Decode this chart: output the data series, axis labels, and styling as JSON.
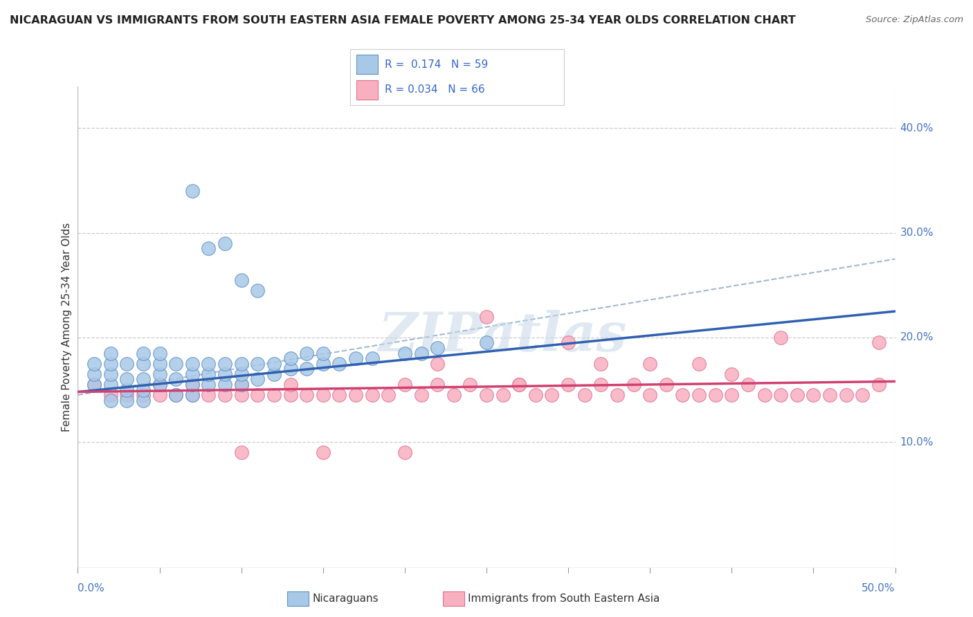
{
  "title": "NICARAGUAN VS IMMIGRANTS FROM SOUTH EASTERN ASIA FEMALE POVERTY AMONG 25-34 YEAR OLDS CORRELATION CHART",
  "source": "Source: ZipAtlas.com",
  "ylabel": "Female Poverty Among 25-34 Year Olds",
  "ytick_vals": [
    0.1,
    0.2,
    0.3,
    0.4
  ],
  "ytick_labels": [
    "10.0%",
    "20.0%",
    "30.0%",
    "40.0%"
  ],
  "xlim": [
    0.0,
    0.5
  ],
  "ylim": [
    -0.02,
    0.44
  ],
  "blue_color": "#a8c8e8",
  "blue_edge_color": "#6090c0",
  "pink_color": "#f8b0c0",
  "pink_edge_color": "#e07090",
  "blue_line_color": "#3060b0",
  "pink_line_color": "#d04070",
  "dash_line_color": "#a0b8d0",
  "label_nicaraguans": "Nicaraguans",
  "label_asia": "Immigrants from South Eastern Asia",
  "blue_x": [
    0.01,
    0.01,
    0.01,
    0.02,
    0.02,
    0.02,
    0.02,
    0.02,
    0.03,
    0.03,
    0.03,
    0.03,
    0.04,
    0.04,
    0.04,
    0.04,
    0.04,
    0.05,
    0.05,
    0.05,
    0.05,
    0.06,
    0.06,
    0.06,
    0.07,
    0.07,
    0.07,
    0.07,
    0.08,
    0.08,
    0.08,
    0.09,
    0.09,
    0.09,
    0.1,
    0.1,
    0.1,
    0.11,
    0.11,
    0.12,
    0.12,
    0.13,
    0.13,
    0.14,
    0.14,
    0.15,
    0.15,
    0.16,
    0.17,
    0.18,
    0.2,
    0.21,
    0.22,
    0.25,
    0.07,
    0.08,
    0.09,
    0.1,
    0.11
  ],
  "blue_y": [
    0.155,
    0.165,
    0.175,
    0.14,
    0.155,
    0.165,
    0.175,
    0.185,
    0.14,
    0.15,
    0.16,
    0.175,
    0.14,
    0.15,
    0.16,
    0.175,
    0.185,
    0.155,
    0.165,
    0.175,
    0.185,
    0.145,
    0.16,
    0.175,
    0.145,
    0.155,
    0.165,
    0.175,
    0.155,
    0.165,
    0.175,
    0.155,
    0.165,
    0.175,
    0.155,
    0.165,
    0.175,
    0.16,
    0.175,
    0.165,
    0.175,
    0.17,
    0.18,
    0.17,
    0.185,
    0.175,
    0.185,
    0.175,
    0.18,
    0.18,
    0.185,
    0.185,
    0.19,
    0.195,
    0.34,
    0.285,
    0.29,
    0.255,
    0.245
  ],
  "pink_x": [
    0.01,
    0.02,
    0.03,
    0.04,
    0.05,
    0.05,
    0.06,
    0.07,
    0.07,
    0.08,
    0.09,
    0.1,
    0.1,
    0.11,
    0.12,
    0.13,
    0.13,
    0.14,
    0.15,
    0.16,
    0.17,
    0.18,
    0.19,
    0.2,
    0.21,
    0.22,
    0.23,
    0.24,
    0.25,
    0.25,
    0.26,
    0.27,
    0.28,
    0.29,
    0.3,
    0.31,
    0.32,
    0.33,
    0.34,
    0.35,
    0.36,
    0.37,
    0.38,
    0.39,
    0.4,
    0.41,
    0.42,
    0.43,
    0.44,
    0.45,
    0.46,
    0.47,
    0.48,
    0.49,
    0.49,
    0.3,
    0.35,
    0.4,
    0.22,
    0.27,
    0.32,
    0.1,
    0.15,
    0.2,
    0.38,
    0.43
  ],
  "pink_y": [
    0.155,
    0.145,
    0.145,
    0.145,
    0.145,
    0.155,
    0.145,
    0.145,
    0.155,
    0.145,
    0.145,
    0.145,
    0.155,
    0.145,
    0.145,
    0.145,
    0.155,
    0.145,
    0.145,
    0.145,
    0.145,
    0.145,
    0.145,
    0.155,
    0.145,
    0.155,
    0.145,
    0.155,
    0.145,
    0.22,
    0.145,
    0.155,
    0.145,
    0.145,
    0.155,
    0.145,
    0.155,
    0.145,
    0.155,
    0.145,
    0.155,
    0.145,
    0.145,
    0.145,
    0.145,
    0.155,
    0.145,
    0.145,
    0.145,
    0.145,
    0.145,
    0.145,
    0.145,
    0.155,
    0.195,
    0.195,
    0.175,
    0.165,
    0.175,
    0.155,
    0.175,
    0.09,
    0.09,
    0.09,
    0.175,
    0.2
  ],
  "blue_line_x": [
    0.0,
    0.5
  ],
  "blue_line_y": [
    0.148,
    0.225
  ],
  "pink_line_x": [
    0.0,
    0.5
  ],
  "pink_line_y": [
    0.148,
    0.158
  ],
  "dash_line_x": [
    0.0,
    0.5
  ],
  "dash_line_y": [
    0.145,
    0.275
  ]
}
